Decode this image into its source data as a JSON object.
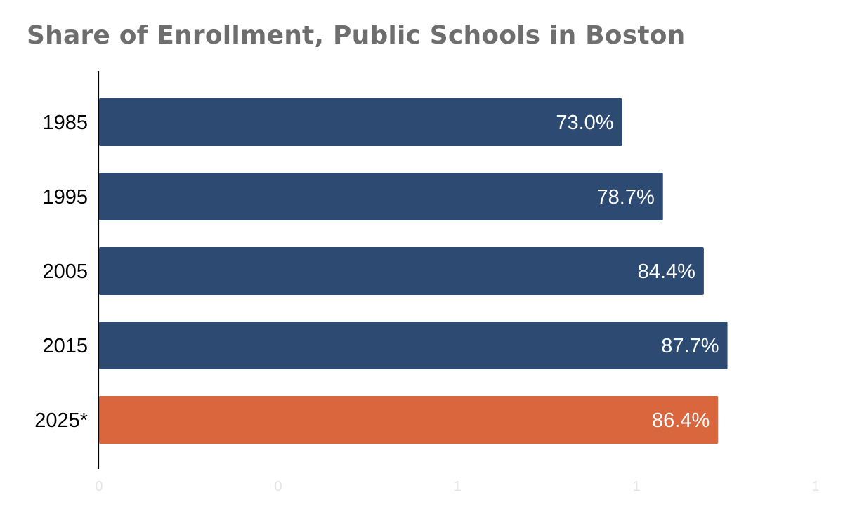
{
  "chart_data": {
    "type": "bar",
    "orientation": "horizontal",
    "title": "Share of Enrollment, Public Schools in Boston",
    "categories": [
      "1985",
      "1995",
      "2005",
      "2015",
      "2025*"
    ],
    "values": [
      73.0,
      78.7,
      84.4,
      87.7,
      86.4
    ],
    "value_labels": [
      "73.0%",
      "78.7%",
      "84.4%",
      "87.7%",
      "86.4%"
    ],
    "x_tick_labels": [
      "0",
      "0",
      "1",
      "1",
      "1"
    ],
    "xlim": [
      0,
      100
    ],
    "xlabel": "",
    "ylabel": "",
    "grid": false,
    "colors": {
      "default": "#2c4a72",
      "highlight": "#d9663c",
      "highlight_index": 4
    }
  }
}
